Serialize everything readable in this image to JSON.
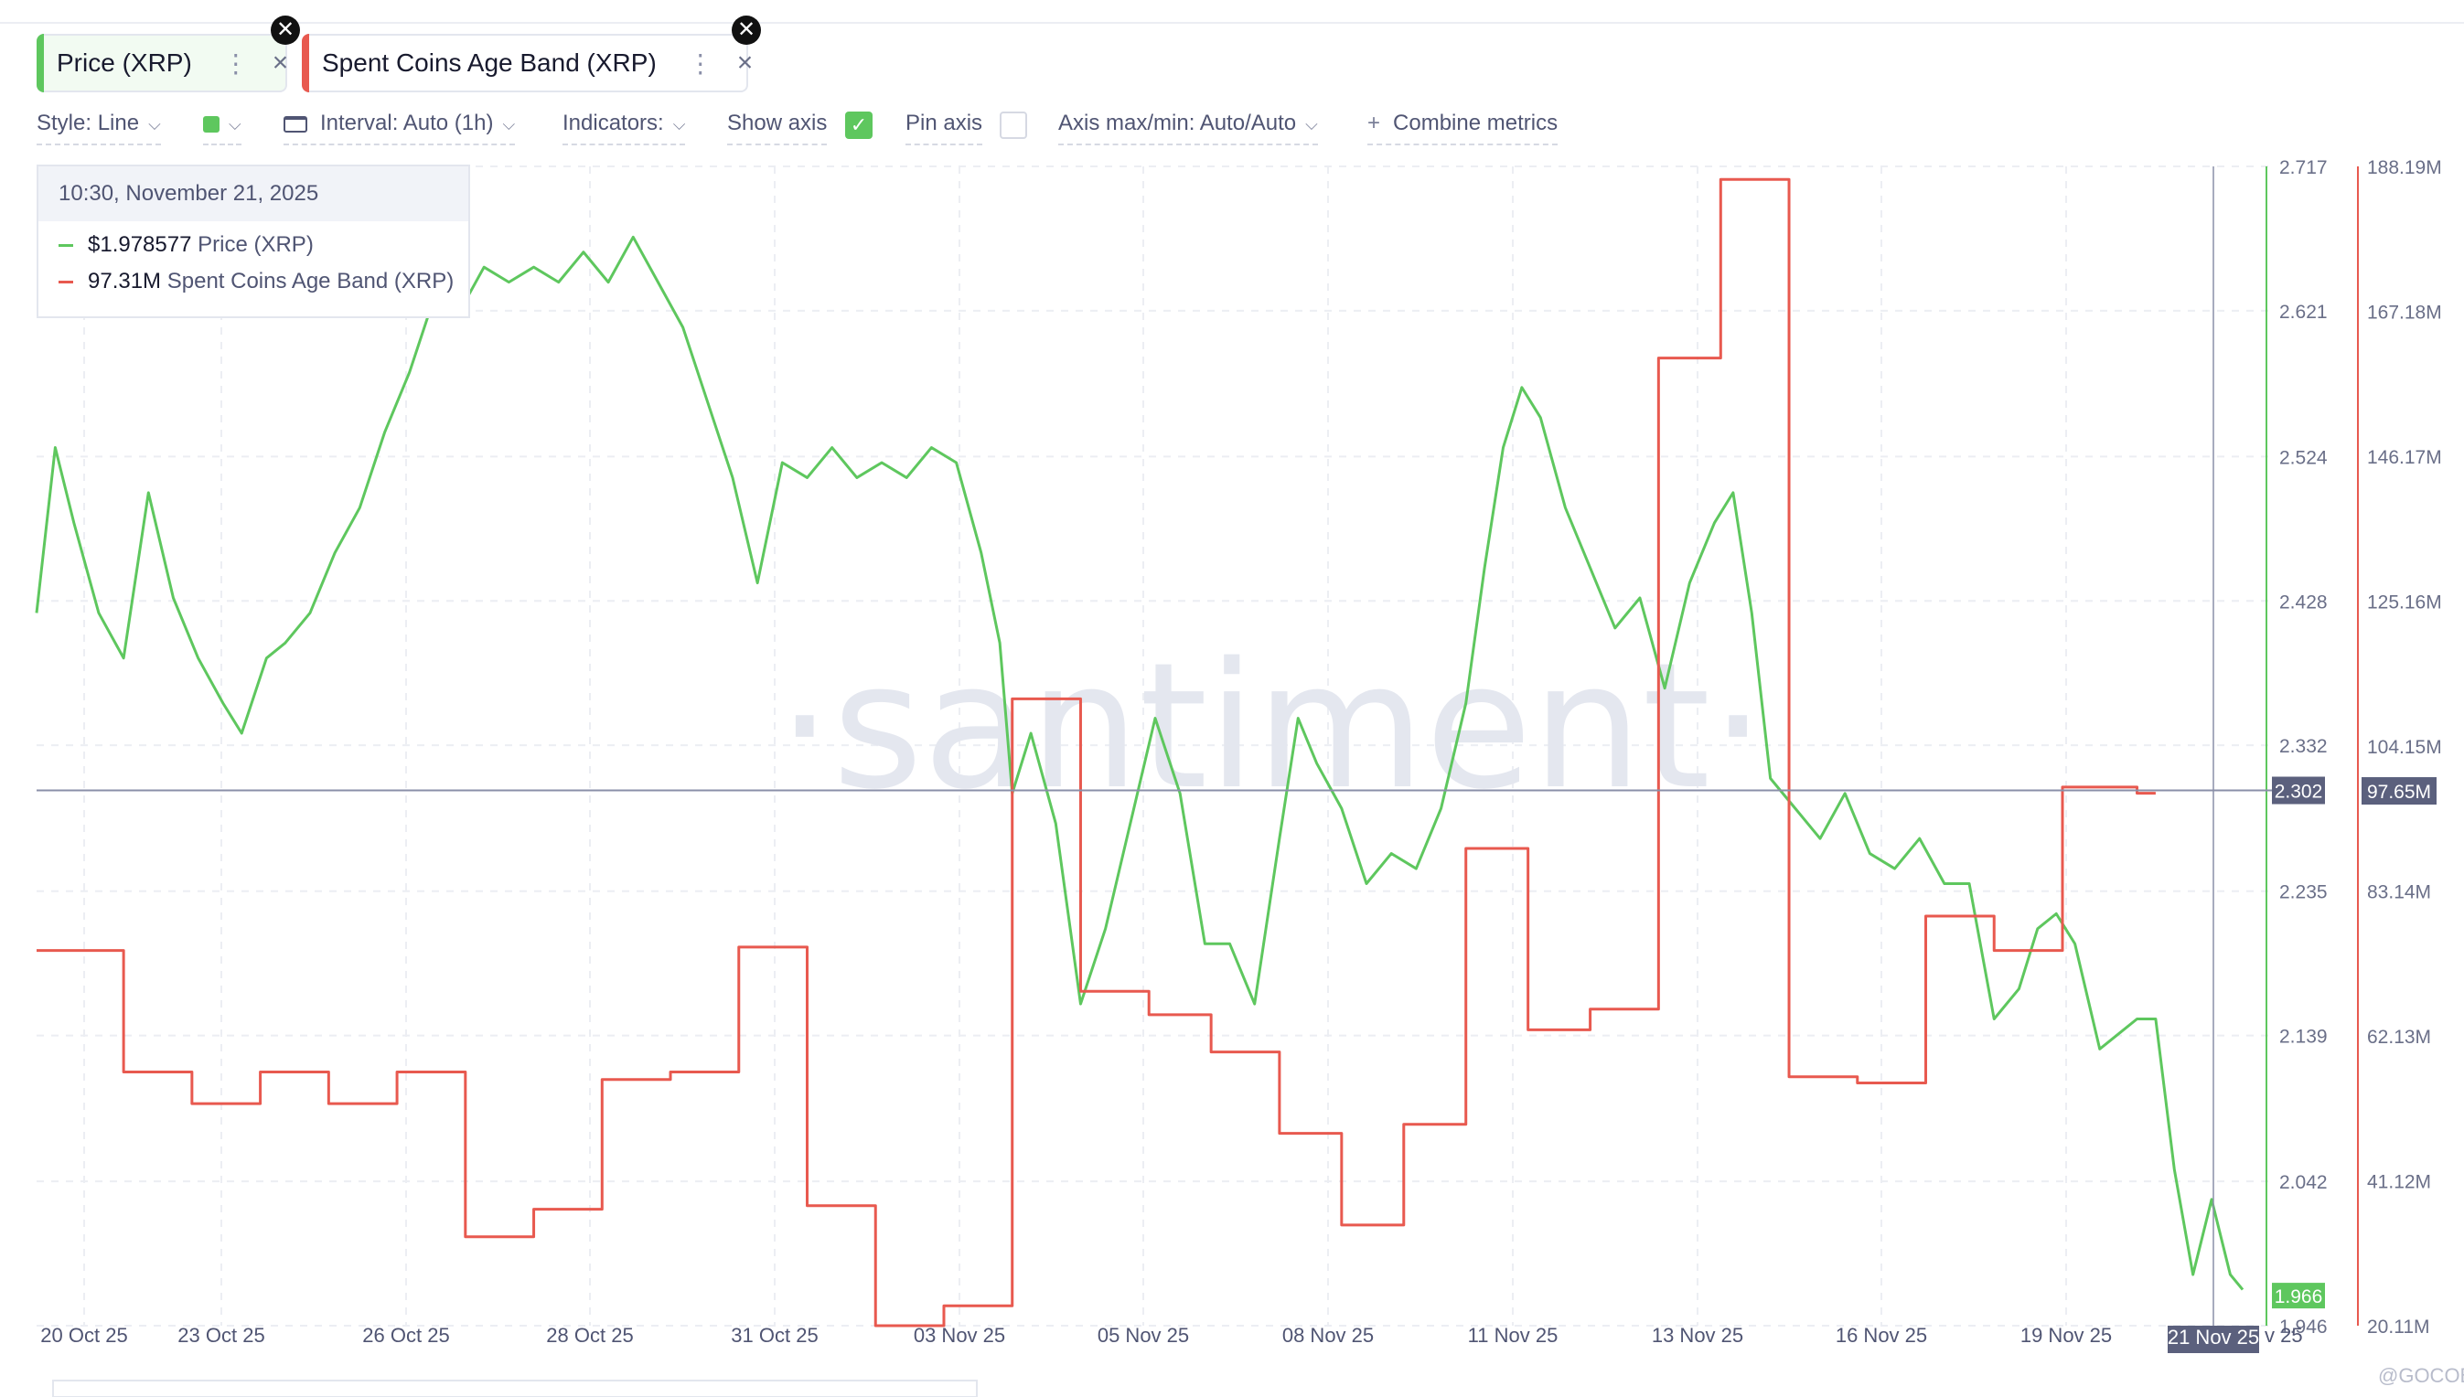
{
  "chips": [
    {
      "label": "Price (XRP)",
      "color": "#5ec75e"
    },
    {
      "label": "Spent Coins Age Band (XRP)",
      "color": "#e8594f"
    }
  ],
  "chip_icons": {
    "more": "⋮",
    "remove": "×",
    "close_badge": "✕"
  },
  "toolbar": {
    "style": "Style: Line",
    "interval": "Interval: Auto (1h)",
    "indicators": "Indicators:",
    "show_axis": "Show axis",
    "show_axis_checked": true,
    "pin_axis": "Pin axis",
    "pin_axis_checked": false,
    "axis_minmax": "Axis max/min: Auto/Auto",
    "combine_plus": "+",
    "combine": "Combine metrics",
    "color_swatch": "#5ec75e"
  },
  "tooltip": {
    "date": "10:30, November 21, 2025",
    "rows": [
      {
        "value": "$1.978577",
        "label": "Price (XRP)",
        "color": "#5ec75e"
      },
      {
        "value": "97.31M",
        "label": "Spent Coins Age Band (XRP)",
        "color": "#e8594f"
      }
    ]
  },
  "watermark": "·santiment·",
  "credit": "@GOCOBR",
  "chart_data": {
    "type": "line",
    "x_ticks": [
      "20 Oct 25",
      "23 Oct 25",
      "26 Oct 25",
      "28 Oct 25",
      "31 Oct 25",
      "03 Nov 25",
      "05 Nov 25",
      "08 Nov 25",
      "11 Nov 25",
      "13 Nov 25",
      "16 Nov 25",
      "19 Nov 25",
      "21 Nov 25"
    ],
    "x_tail_label": "v 25",
    "x_range": [
      "2025-10-20",
      "2025-11-21"
    ],
    "price_axis": {
      "ticks": [
        "2.717",
        "2.621",
        "2.524",
        "2.428",
        "2.332",
        "2.235",
        "2.139",
        "2.042",
        "1.946"
      ],
      "range": [
        1.946,
        2.717
      ],
      "current": "2.302",
      "last": "1.966",
      "color": "#5ec75e"
    },
    "spent_axis": {
      "ticks": [
        "188.19M",
        "167.18M",
        "146.17M",
        "125.16M",
        "104.15M",
        "83.14M",
        "62.13M",
        "41.12M",
        "20.11M"
      ],
      "range": [
        20.11,
        188.19
      ],
      "current": "97.65M",
      "color": "#e8594f"
    },
    "crosshair_value": 2.302,
    "crosshair_date": "21 Nov 25",
    "grid": true,
    "series": [
      {
        "name": "Price (XRP)",
        "color": "#5ec75e",
        "axis": "price",
        "points": [
          [
            0.0,
            2.42
          ],
          [
            0.3,
            2.53
          ],
          [
            0.6,
            2.48
          ],
          [
            1.0,
            2.42
          ],
          [
            1.4,
            2.39
          ],
          [
            1.8,
            2.5
          ],
          [
            2.2,
            2.43
          ],
          [
            2.6,
            2.39
          ],
          [
            3.0,
            2.36
          ],
          [
            3.3,
            2.34
          ],
          [
            3.7,
            2.39
          ],
          [
            4.0,
            2.4
          ],
          [
            4.4,
            2.42
          ],
          [
            4.8,
            2.46
          ],
          [
            5.2,
            2.49
          ],
          [
            5.6,
            2.54
          ],
          [
            6.0,
            2.58
          ],
          [
            6.4,
            2.63
          ],
          [
            6.8,
            2.62
          ],
          [
            7.2,
            2.65
          ],
          [
            7.6,
            2.64
          ],
          [
            8.0,
            2.65
          ],
          [
            8.4,
            2.64
          ],
          [
            8.8,
            2.66
          ],
          [
            9.2,
            2.64
          ],
          [
            9.6,
            2.67
          ],
          [
            10.0,
            2.64
          ],
          [
            10.4,
            2.61
          ],
          [
            10.8,
            2.56
          ],
          [
            11.2,
            2.51
          ],
          [
            11.6,
            2.44
          ],
          [
            12.0,
            2.52
          ],
          [
            12.4,
            2.51
          ],
          [
            12.8,
            2.53
          ],
          [
            13.2,
            2.51
          ],
          [
            13.6,
            2.52
          ],
          [
            14.0,
            2.51
          ],
          [
            14.4,
            2.53
          ],
          [
            14.8,
            2.52
          ],
          [
            15.2,
            2.46
          ],
          [
            15.5,
            2.4
          ],
          [
            15.7,
            2.3
          ],
          [
            16.0,
            2.34
          ],
          [
            16.4,
            2.28
          ],
          [
            16.8,
            2.16
          ],
          [
            17.2,
            2.21
          ],
          [
            17.6,
            2.28
          ],
          [
            18.0,
            2.35
          ],
          [
            18.4,
            2.3
          ],
          [
            18.8,
            2.2
          ],
          [
            19.2,
            2.2
          ],
          [
            19.6,
            2.16
          ],
          [
            20.0,
            2.27
          ],
          [
            20.3,
            2.35
          ],
          [
            20.6,
            2.32
          ],
          [
            21.0,
            2.29
          ],
          [
            21.4,
            2.24
          ],
          [
            21.8,
            2.26
          ],
          [
            22.2,
            2.25
          ],
          [
            22.6,
            2.29
          ],
          [
            23.0,
            2.36
          ],
          [
            23.3,
            2.45
          ],
          [
            23.6,
            2.53
          ],
          [
            23.9,
            2.57
          ],
          [
            24.2,
            2.55
          ],
          [
            24.6,
            2.49
          ],
          [
            25.0,
            2.45
          ],
          [
            25.4,
            2.41
          ],
          [
            25.8,
            2.43
          ],
          [
            26.2,
            2.37
          ],
          [
            26.6,
            2.44
          ],
          [
            27.0,
            2.48
          ],
          [
            27.3,
            2.5
          ],
          [
            27.6,
            2.42
          ],
          [
            27.9,
            2.31
          ],
          [
            28.3,
            2.29
          ],
          [
            28.7,
            2.27
          ],
          [
            29.1,
            2.3
          ],
          [
            29.5,
            2.26
          ],
          [
            29.9,
            2.25
          ],
          [
            30.3,
            2.27
          ],
          [
            30.7,
            2.24
          ],
          [
            31.1,
            2.24
          ],
          [
            31.5,
            2.15
          ],
          [
            31.9,
            2.17
          ],
          [
            32.2,
            2.21
          ],
          [
            32.5,
            2.22
          ],
          [
            32.8,
            2.2
          ],
          [
            33.2,
            2.13
          ],
          [
            33.5,
            2.14
          ],
          [
            33.8,
            2.15
          ],
          [
            34.1,
            2.15
          ],
          [
            34.4,
            2.05
          ],
          [
            34.7,
            1.98
          ],
          [
            35.0,
            2.03
          ],
          [
            35.3,
            1.98
          ],
          [
            35.5,
            1.97
          ]
        ]
      },
      {
        "name": "Spent Coins Age Band (XRP)",
        "color": "#e8594f",
        "axis": "spent",
        "step": true,
        "points": [
          [
            0.0,
            74.5
          ],
          [
            1.4,
            56.9
          ],
          [
            2.5,
            52.3
          ],
          [
            3.6,
            56.9
          ],
          [
            4.7,
            52.3
          ],
          [
            5.8,
            56.9
          ],
          [
            6.9,
            33.0
          ],
          [
            8.0,
            37.0
          ],
          [
            9.1,
            55.8
          ],
          [
            10.2,
            56.9
          ],
          [
            11.3,
            75.0
          ],
          [
            12.4,
            37.5
          ],
          [
            13.5,
            20.11
          ],
          [
            14.6,
            23.0
          ],
          [
            15.7,
            111.0
          ],
          [
            16.8,
            68.6
          ],
          [
            17.9,
            65.2
          ],
          [
            18.9,
            59.8
          ],
          [
            20.0,
            48.0
          ],
          [
            21.0,
            34.7
          ],
          [
            22.0,
            49.3
          ],
          [
            23.0,
            89.3
          ],
          [
            24.0,
            63.0
          ],
          [
            25.0,
            66.0
          ],
          [
            26.1,
            160.4
          ],
          [
            27.1,
            186.3
          ],
          [
            28.2,
            56.2
          ],
          [
            29.3,
            55.3
          ],
          [
            30.4,
            79.5
          ],
          [
            31.5,
            74.5
          ],
          [
            32.6,
            98.2
          ],
          [
            33.8,
            97.3
          ]
        ]
      }
    ]
  }
}
